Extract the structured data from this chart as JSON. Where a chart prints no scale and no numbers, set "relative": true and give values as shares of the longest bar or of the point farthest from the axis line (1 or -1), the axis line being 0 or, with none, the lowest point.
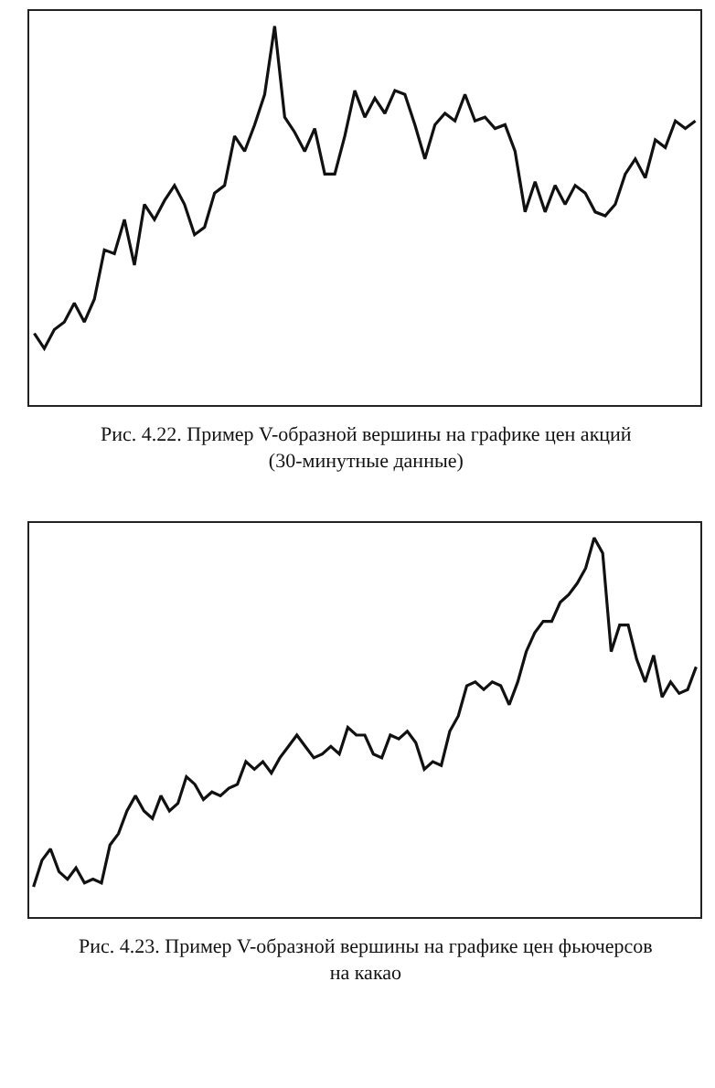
{
  "chart_data": [
    {
      "type": "line",
      "relative": true,
      "tick_labels": false,
      "color": "#111111",
      "categories": [
        null,
        null,
        null,
        null,
        null,
        null,
        null,
        null,
        null,
        null,
        null,
        null,
        null,
        null,
        null,
        null,
        null,
        null,
        null,
        null,
        null,
        null,
        null,
        null,
        null,
        null,
        null,
        null,
        null,
        null,
        null,
        null,
        null,
        null,
        null,
        null,
        null,
        null,
        null,
        null,
        null,
        null,
        null,
        null,
        null,
        null,
        null,
        null,
        null,
        null,
        null,
        null,
        null,
        null,
        null,
        null,
        null,
        null,
        null,
        null,
        null,
        null,
        null,
        null,
        null,
        null,
        null
      ],
      "values": [
        0.19,
        0.15,
        0.2,
        0.22,
        0.27,
        0.22,
        0.28,
        0.41,
        0.4,
        0.49,
        0.37,
        0.53,
        0.49,
        0.54,
        0.58,
        0.53,
        0.45,
        0.47,
        0.56,
        0.58,
        0.71,
        0.67,
        0.74,
        0.82,
        1.0,
        0.76,
        0.72,
        0.67,
        0.73,
        0.61,
        0.61,
        0.71,
        0.83,
        0.76,
        0.81,
        0.77,
        0.83,
        0.82,
        0.74,
        0.65,
        0.74,
        0.77,
        0.75,
        0.82,
        0.75,
        0.76,
        0.73,
        0.74,
        0.67,
        0.51,
        0.59,
        0.51,
        0.58,
        0.53,
        0.58,
        0.56,
        0.51,
        0.5,
        0.53,
        0.61,
        0.65,
        0.6,
        0.7,
        0.68,
        0.75,
        0.73,
        0.75
      ],
      "annotations": [
        "Рис. 4.22. Пример V-образной вершины на графике цен акций (30-минутные данные)"
      ]
    },
    {
      "type": "line",
      "relative": true,
      "tick_labels": false,
      "color": "#111111",
      "categories": [
        null,
        null,
        null,
        null,
        null,
        null,
        null,
        null,
        null,
        null,
        null,
        null,
        null,
        null,
        null,
        null,
        null,
        null,
        null,
        null,
        null,
        null,
        null,
        null,
        null,
        null,
        null,
        null,
        null,
        null,
        null,
        null,
        null,
        null,
        null,
        null,
        null,
        null,
        null,
        null,
        null,
        null,
        null,
        null,
        null,
        null,
        null,
        null,
        null,
        null,
        null,
        null,
        null,
        null,
        null,
        null,
        null,
        null,
        null,
        null,
        null,
        null,
        null,
        null,
        null,
        null,
        null,
        null,
        null,
        null,
        null,
        null,
        null,
        null,
        null,
        null,
        null,
        null,
        null
      ],
      "values": [
        0.08,
        0.15,
        0.18,
        0.12,
        0.1,
        0.13,
        0.09,
        0.1,
        0.09,
        0.19,
        0.22,
        0.28,
        0.32,
        0.28,
        0.26,
        0.32,
        0.28,
        0.3,
        0.37,
        0.35,
        0.31,
        0.33,
        0.32,
        0.34,
        0.35,
        0.41,
        0.39,
        0.41,
        0.38,
        0.42,
        0.45,
        0.48,
        0.45,
        0.42,
        0.43,
        0.45,
        0.43,
        0.5,
        0.48,
        0.48,
        0.43,
        0.42,
        0.48,
        0.47,
        0.49,
        0.46,
        0.39,
        0.41,
        0.4,
        0.49,
        0.53,
        0.61,
        0.62,
        0.6,
        0.62,
        0.61,
        0.56,
        0.62,
        0.7,
        0.75,
        0.78,
        0.78,
        0.83,
        0.85,
        0.88,
        0.92,
        1.0,
        0.96,
        0.7,
        0.77,
        0.77,
        0.68,
        0.62,
        0.69,
        0.58,
        0.62,
        0.59,
        0.6,
        0.66
      ],
      "annotations": [
        "Рис. 4.23. Пример V-образной вершины на графике цен фьючерсов на какао"
      ]
    }
  ]
}
